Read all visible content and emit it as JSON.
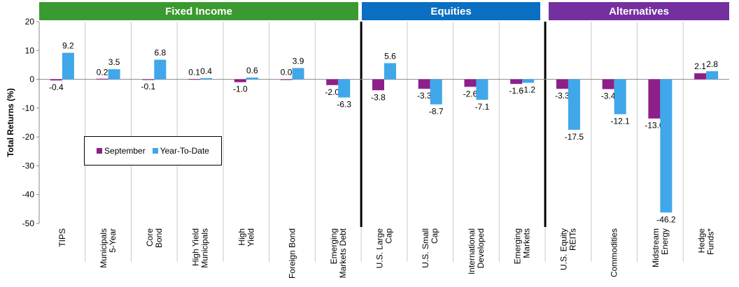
{
  "colors": {
    "fixed_income": "#3b9a2f",
    "equities": "#0a6fc2",
    "alternatives": "#7530a0",
    "september": "#8e1f8a",
    "ytd": "#3fa7ea"
  },
  "groups": [
    {
      "label": "Fixed Income",
      "start": 0,
      "end": 6
    },
    {
      "label": "Equities",
      "start": 7,
      "end": 10
    },
    {
      "label": "Alternatives",
      "start": 11,
      "end": 14
    }
  ],
  "chart_data": {
    "type": "bar",
    "ylabel": "Total Returns (%)",
    "ylim": [
      -50,
      20
    ],
    "yticks": [
      20,
      10,
      0,
      -10,
      -20,
      -30,
      -40,
      -50
    ],
    "grid": "vertical separators between categories",
    "legend_placement": "center-left",
    "categories": [
      [
        "TIPS"
      ],
      [
        "Municipals",
        "5-Year"
      ],
      [
        "Core",
        "Bond"
      ],
      [
        "High Yield",
        "Municipals"
      ],
      [
        "High",
        "Yield"
      ],
      [
        "Foreign Bond"
      ],
      [
        "Emerging",
        "Markets Debt"
      ],
      [
        "U.S. Large",
        "Cap"
      ],
      [
        "U.S. Small",
        "Cap"
      ],
      [
        "International",
        "Developed"
      ],
      [
        "Emerging",
        "Markets"
      ],
      [
        "U.S. Equity",
        "REITs"
      ],
      [
        "Commodities"
      ],
      [
        "Midstream",
        "Energy"
      ],
      [
        "Hedge",
        "Funds*"
      ]
    ],
    "series": [
      {
        "name": "September",
        "values": [
          -0.4,
          0.2,
          -0.1,
          0.1,
          -1.0,
          0.0,
          -2.0,
          -3.8,
          -3.3,
          -2.6,
          -1.6,
          -3.3,
          -3.4,
          -13.6,
          2.1
        ],
        "labels": [
          "-0.4",
          "0.2",
          "-0.1",
          "0.1",
          "-1.0",
          "0.0",
          "-2.0",
          "-3.8",
          "-3.3",
          "-2.6",
          "-1.6",
          "-3.3",
          "-3.4",
          "-13.6",
          "2.1"
        ]
      },
      {
        "name": "Year-To-Date",
        "values": [
          9.2,
          3.5,
          6.8,
          0.4,
          0.6,
          3.9,
          -6.3,
          5.6,
          -8.7,
          -7.1,
          -1.2,
          -17.5,
          -12.1,
          -46.2,
          2.8
        ],
        "labels": [
          "9.2",
          "3.5",
          "6.8",
          "0.4",
          "0.6",
          "3.9",
          "-6.3",
          "5.6",
          "-8.7",
          "-7.1",
          "-1.2",
          "-17.5",
          "-12.1",
          "-46.2",
          "2.8"
        ]
      }
    ]
  }
}
